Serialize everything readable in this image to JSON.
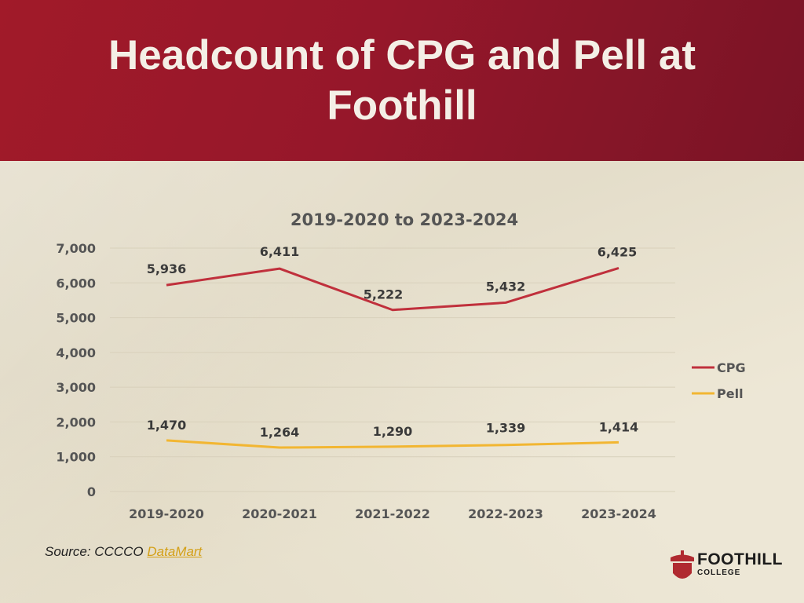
{
  "slide": {
    "title": "Headcount of CPG and Pell at Foothill",
    "source_prefix": "Source: CCCCO ",
    "source_link": "DataMart",
    "logo_main": "FOOTHILL",
    "logo_sub": "COLLEGE",
    "colors": {
      "banner": "#96172a",
      "background": "#ece5d2",
      "link": "#d4a017"
    }
  },
  "chart_data": {
    "type": "line",
    "title": "2019-2020 to 2023-2024",
    "categories": [
      "2019-2020",
      "2020-2021",
      "2021-2022",
      "2022-2023",
      "2023-2024"
    ],
    "series": [
      {
        "name": "CPG",
        "color": "#c0303c",
        "values": [
          5936,
          6411,
          5222,
          5432,
          6425
        ],
        "labels": [
          "5,936",
          "6,411",
          "5,222",
          "5,432",
          "6,425"
        ]
      },
      {
        "name": "Pell",
        "color": "#f2b632",
        "values": [
          1470,
          1264,
          1290,
          1339,
          1414
        ],
        "labels": [
          "1,470",
          "1,264",
          "1,290",
          "1,339",
          "1,414"
        ]
      }
    ],
    "ylim": [
      0,
      7000
    ],
    "yticks": [
      0,
      1000,
      2000,
      3000,
      4000,
      5000,
      6000,
      7000
    ],
    "ytick_labels": [
      "0",
      "1,000",
      "2,000",
      "3,000",
      "4,000",
      "5,000",
      "6,000",
      "7,000"
    ],
    "xlabel": "",
    "ylabel": "",
    "grid": true,
    "legend": "right"
  }
}
